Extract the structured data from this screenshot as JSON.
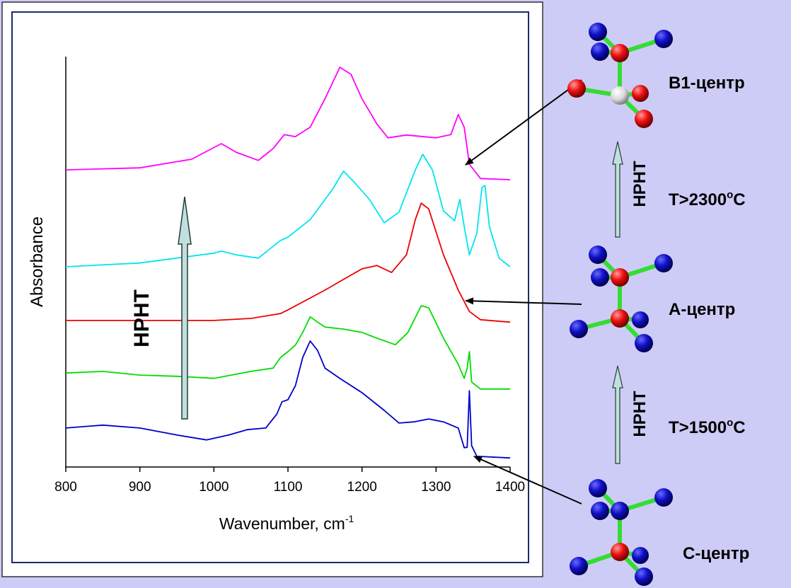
{
  "chart_data": {
    "type": "line",
    "x_label": "Wavenumber, cm",
    "x_label_sup": "-1",
    "y_label": "Absorbance",
    "xlim": [
      800,
      1400
    ],
    "xticks": [
      800,
      900,
      1000,
      1100,
      1200,
      1300,
      1400
    ],
    "ylim": [
      0,
      100
    ],
    "annotations": [
      "HPHT",
      "B1-центр",
      "A-центр",
      "C-центр",
      "HPHT",
      "HPHT"
    ],
    "temp_labels": [
      [
        "T>2300",
        "o",
        "C"
      ],
      [
        "T>1500",
        "o",
        "C"
      ]
    ],
    "series": [
      {
        "color": "#0000cc",
        "x": [
          800,
          850,
          900,
          950,
          990,
          1020,
          1045,
          1070,
          1085,
          1092,
          1100,
          1110,
          1120,
          1130,
          1140,
          1150,
          1170,
          1200,
          1230,
          1250,
          1270,
          1290,
          1310,
          1330,
          1338,
          1342,
          1345,
          1348,
          1355,
          1400
        ],
        "values": [
          9.5,
          10.2,
          9.5,
          7.8,
          6.6,
          7.8,
          9.1,
          9.5,
          12.9,
          15.9,
          16.4,
          19.8,
          26.7,
          30.7,
          28.4,
          24.1,
          21.6,
          18.1,
          13.8,
          10.7,
          11.0,
          11.7,
          11.0,
          9.5,
          4.7,
          4.8,
          18.6,
          5.2,
          2.6,
          2.2
        ]
      },
      {
        "color": "#00dd00",
        "x": [
          800,
          850,
          900,
          950,
          1000,
          1050,
          1080,
          1090,
          1100,
          1110,
          1120,
          1130,
          1140,
          1150,
          1175,
          1200,
          1220,
          1245,
          1262,
          1280,
          1290,
          1310,
          1330,
          1338,
          1342,
          1345,
          1348,
          1360,
          1400
        ],
        "values": [
          22.9,
          23.3,
          22.4,
          22.1,
          21.6,
          23.3,
          24.1,
          26.7,
          28.1,
          29.7,
          32.8,
          36.6,
          35.3,
          34.1,
          33.6,
          32.8,
          31.4,
          29.8,
          32.8,
          39.3,
          38.8,
          31.4,
          25.0,
          21.6,
          24.1,
          28.1,
          20.7,
          19.0,
          19.0
        ]
      },
      {
        "color": "#ee0000",
        "x": [
          800,
          900,
          1000,
          1050,
          1090,
          1100,
          1150,
          1175,
          1200,
          1220,
          1240,
          1260,
          1272,
          1280,
          1290,
          1310,
          1330,
          1345,
          1360,
          1400
        ],
        "values": [
          35.7,
          35.7,
          35.7,
          36.2,
          37.4,
          38.3,
          43.1,
          45.7,
          48.3,
          49.1,
          47.4,
          51.7,
          60.3,
          64.3,
          62.9,
          51.7,
          43.1,
          37.9,
          35.9,
          35.3
        ]
      },
      {
        "color": "#00e5ee",
        "x": [
          800,
          900,
          1000,
          1010,
          1030,
          1060,
          1090,
          1100,
          1130,
          1160,
          1175,
          1190,
          1210,
          1230,
          1250,
          1272,
          1282,
          1295,
          1310,
          1325,
          1332,
          1338,
          1345,
          1355,
          1362,
          1366,
          1372,
          1385,
          1400
        ],
        "values": [
          48.8,
          49.7,
          52.1,
          52.6,
          51.7,
          50.9,
          55.2,
          56.0,
          60.3,
          67.6,
          72.1,
          69.3,
          65.2,
          59.5,
          62.1,
          72.4,
          76.2,
          72.4,
          62.4,
          60.0,
          65.2,
          58.6,
          51.7,
          56.9,
          68.1,
          68.6,
          58.6,
          50.9,
          48.8
        ]
      },
      {
        "color": "#ff00ff",
        "x": [
          800,
          900,
          970,
          1010,
          1030,
          1060,
          1080,
          1095,
          1110,
          1130,
          1150,
          1170,
          1185,
          1200,
          1220,
          1235,
          1260,
          1300,
          1320,
          1330,
          1338,
          1345,
          1360,
          1400
        ],
        "values": [
          72.4,
          72.9,
          75.0,
          78.8,
          76.7,
          74.7,
          77.6,
          81.0,
          80.5,
          82.8,
          89.7,
          97.4,
          95.7,
          89.7,
          83.6,
          80.2,
          80.9,
          80.2,
          81.0,
          85.9,
          82.8,
          73.8,
          70.3,
          70.0
        ]
      }
    ]
  }
}
